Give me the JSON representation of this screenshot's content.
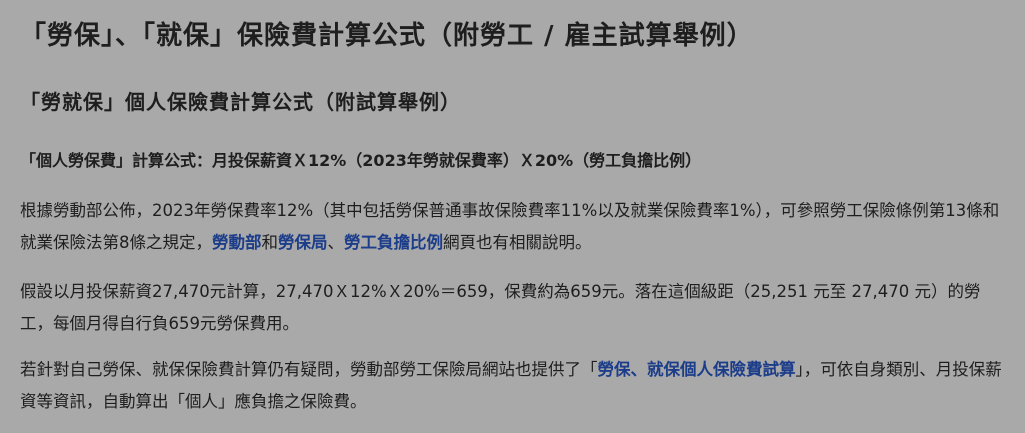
{
  "heading_main": "「勞保」、「就保」保險費計算公式（附勞工 / 雇主試算舉例）",
  "heading_sub": "「勞就保」個人保險費計算公式（附試算舉例）",
  "formula_line": "「個人勞保費」計算公式：月投保薪資Ｘ12%（2023年勞就保費率）Ｘ20%（勞工負擔比例）",
  "para1": {
    "text_a": "根據勞動部公佈，2023年勞保費率12%（其中包括勞保普通事故保險費率11%以及就業保險費率1%），可參照勞工保險條例第13條和就業保險法第8條之規定，",
    "link_mol": "勞動部",
    "text_b": "和",
    "link_bli": "勞保局",
    "text_c": "、",
    "link_ratio": "勞工負擔比例",
    "text_d": "網頁也有相關說明。"
  },
  "para2": {
    "text": "假設以月投保薪資27,470元計算，27,470Ｘ12%Ｘ20%＝659，保費約為659元。落在這個級距（25,251 元至 27,470 元）的勞工，每個月得自行負659元勞保費用。"
  },
  "para3": {
    "text_a": "若針對自己勞保、就保保險費計算仍有疑問，勞動部勞工保險局網站也提供了「",
    "link_calc": "勞保、就保個人保險費試算",
    "text_b": "」，可依自身類別、月投保薪資等資訊，自動算出「個人」應負擔之保險費。"
  },
  "colors": {
    "background": "#a9a9a9",
    "text": "#1e1e1e",
    "link": "#1c3d8a"
  }
}
